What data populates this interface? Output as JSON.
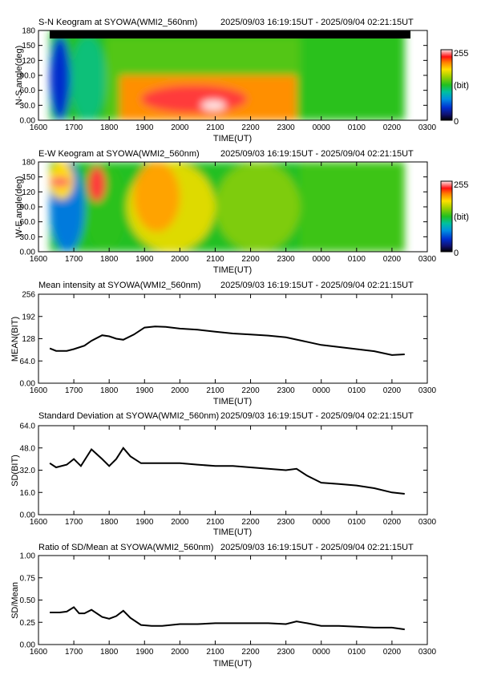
{
  "panels": [
    {
      "id": "sn",
      "title": "S-N Keogram at SYOWA(WMI2_560nm)",
      "time_range": "2025/09/03 16:19:15UT - 2025/09/04 02:21:15UT",
      "ylabel": "N-S angle(deg)",
      "xlabel": "TIME(UT)",
      "yticks": [
        "0.00",
        "30.0",
        "60.0",
        "90.0",
        "120",
        "150",
        "180"
      ],
      "xticks": [
        "1600",
        "1700",
        "1800",
        "1900",
        "2000",
        "2100",
        "2200",
        "2300",
        "0000",
        "0100",
        "0200",
        "0300"
      ],
      "colorbar": {
        "max": "255",
        "unit": "(bit)",
        "min": "0"
      }
    },
    {
      "id": "ew",
      "title": "E-W Keogram at SYOWA(WMI2_560nm)",
      "time_range": "2025/09/03 16:19:15UT - 2025/09/04 02:21:15UT",
      "ylabel": "W-E angle(deg)",
      "xlabel": "TIME(UT)",
      "yticks": [
        "0.00",
        "30.0",
        "60.0",
        "90.0",
        "120",
        "150",
        "180"
      ],
      "xticks": [
        "1600",
        "1700",
        "1800",
        "1900",
        "2000",
        "2100",
        "2200",
        "2300",
        "0000",
        "0100",
        "0200",
        "0300"
      ],
      "colorbar": {
        "max": "255",
        "unit": "(bit)",
        "min": "0"
      }
    },
    {
      "id": "mean",
      "title": "Mean intensity at SYOWA(WMI2_560nm)",
      "time_range": "2025/09/03 16:19:15UT - 2025/09/04 02:21:15UT",
      "ylabel": "MEAN(BIT)",
      "xlabel": "TIME(UT)",
      "yticks": [
        "0.00",
        "64.0",
        "128",
        "192",
        "256"
      ],
      "xticks": [
        "1600",
        "1700",
        "1800",
        "1900",
        "2000",
        "2100",
        "2200",
        "2300",
        "0000",
        "0100",
        "0200",
        "0300"
      ]
    },
    {
      "id": "sd",
      "title": "Standard Deviation at SYOWA(WMI2_560nm)",
      "time_range": "2025/09/03 16:19:15UT - 2025/09/04 02:21:15UT",
      "ylabel": "SD(BIT)",
      "xlabel": "TIME(UT)",
      "yticks": [
        "0.00",
        "16.0",
        "32.0",
        "48.0",
        "64.0"
      ],
      "xticks": [
        "1600",
        "1700",
        "1800",
        "1900",
        "2000",
        "2100",
        "2200",
        "2300",
        "0000",
        "0100",
        "0200",
        "0300"
      ]
    },
    {
      "id": "ratio",
      "title": "Ratio of SD/Mean at SYOWA(WMI2_560nm)",
      "time_range": "2025/09/03 16:19:15UT - 2025/09/04 02:21:15UT",
      "ylabel": "SD/Mean",
      "xlabel": "TIME(UT)",
      "yticks": [
        "0.00",
        "0.25",
        "0.50",
        "0.75",
        "1.00"
      ],
      "xticks": [
        "1600",
        "1700",
        "1800",
        "1900",
        "2000",
        "2100",
        "2200",
        "2300",
        "0000",
        "0100",
        "0200",
        "0300"
      ]
    }
  ],
  "chart_data": [
    {
      "type": "heatmap",
      "title": "S-N Keogram at SYOWA(WMI2_560nm)",
      "xlabel": "TIME(UT)",
      "ylabel": "N-S angle(deg)",
      "xlim": [
        16.0,
        27.0
      ],
      "ylim": [
        0,
        180
      ],
      "zlim": [
        0,
        255
      ],
      "data_x_range": [
        16.32,
        26.36
      ],
      "no_data_above_deg": 168,
      "regions": [
        {
          "x": [
            16.32,
            16.9
          ],
          "y": [
            0,
            168
          ],
          "value": 45
        },
        {
          "x": [
            16.9,
            17.9
          ],
          "y": [
            0,
            168
          ],
          "value": 110
        },
        {
          "x": [
            17.9,
            23.4
          ],
          "y": [
            0,
            168
          ],
          "value": 140
        },
        {
          "x": [
            18.3,
            23.3
          ],
          "y": [
            0,
            90
          ],
          "value": 205
        },
        {
          "x": [
            18.9,
            21.9
          ],
          "y": [
            15,
            70
          ],
          "value": 235
        },
        {
          "x": [
            20.6,
            21.3
          ],
          "y": [
            20,
            40
          ],
          "value": 255
        },
        {
          "x": [
            23.4,
            26.36
          ],
          "y": [
            0,
            168
          ],
          "value": 130
        }
      ]
    },
    {
      "type": "heatmap",
      "title": "E-W Keogram at SYOWA(WMI2_560nm)",
      "xlabel": "TIME(UT)",
      "ylabel": "W-E angle(deg)",
      "xlim": [
        16.0,
        27.0
      ],
      "ylim": [
        0,
        180
      ],
      "zlim": [
        0,
        255
      ],
      "data_x_range": [
        16.32,
        26.36
      ],
      "regions": [
        {
          "x": [
            16.32,
            17.3
          ],
          "y": [
            0,
            180
          ],
          "value": 70
        },
        {
          "x": [
            16.32,
            17.0
          ],
          "y": [
            105,
            180
          ],
          "value": 185
        },
        {
          "x": [
            16.32,
            16.9
          ],
          "y": [
            130,
            150
          ],
          "value": 240
        },
        {
          "x": [
            17.3,
            18.5
          ],
          "y": [
            0,
            180
          ],
          "value": 130
        },
        {
          "x": [
            17.4,
            17.9
          ],
          "y": [
            100,
            170
          ],
          "value": 235
        },
        {
          "x": [
            18.5,
            21.0
          ],
          "y": [
            0,
            180
          ],
          "value": 175
        },
        {
          "x": [
            18.7,
            20.0
          ],
          "y": [
            40,
            180
          ],
          "value": 200
        },
        {
          "x": [
            21.0,
            23.4
          ],
          "y": [
            0,
            180
          ],
          "value": 150
        },
        {
          "x": [
            23.4,
            26.36
          ],
          "y": [
            0,
            180
          ],
          "value": 135
        }
      ]
    },
    {
      "type": "line",
      "title": "Mean intensity at SYOWA(WMI2_560nm)",
      "xlabel": "TIME(UT)",
      "ylabel": "MEAN(BIT)",
      "xlim": [
        16.0,
        27.0
      ],
      "ylim": [
        0,
        256
      ],
      "series": [
        {
          "x": [
            16.32,
            16.5,
            16.8,
            17.0,
            17.3,
            17.5,
            17.8,
            18.0,
            18.2,
            18.4,
            18.7,
            19.0,
            19.3,
            19.6,
            20.0,
            20.5,
            21.0,
            21.5,
            22.0,
            22.5,
            23.0,
            23.5,
            24.0,
            24.5,
            25.0,
            25.5,
            26.0,
            26.36
          ],
          "y": [
            100,
            93,
            93,
            98,
            108,
            122,
            138,
            135,
            128,
            125,
            140,
            160,
            163,
            162,
            157,
            154,
            148,
            143,
            140,
            137,
            132,
            121,
            110,
            104,
            98,
            92,
            81,
            83
          ]
        }
      ]
    },
    {
      "type": "line",
      "title": "Standard Deviation at SYOWA(WMI2_560nm)",
      "xlabel": "TIME(UT)",
      "ylabel": "SD(BIT)",
      "xlim": [
        16.0,
        27.0
      ],
      "ylim": [
        0,
        64
      ],
      "series": [
        {
          "x": [
            16.32,
            16.5,
            16.8,
            17.0,
            17.2,
            17.5,
            17.8,
            18.0,
            18.2,
            18.4,
            18.6,
            18.9,
            19.2,
            19.5,
            20.0,
            20.5,
            21.0,
            21.5,
            22.0,
            22.5,
            23.0,
            23.3,
            23.6,
            24.0,
            24.5,
            25.0,
            25.5,
            26.0,
            26.36
          ],
          "y": [
            37,
            34,
            36,
            40,
            35,
            47,
            40,
            35,
            40,
            48,
            42,
            37,
            37,
            37,
            37,
            36,
            35,
            35,
            34,
            33,
            32,
            33,
            28,
            23,
            22,
            21,
            19,
            16,
            15
          ]
        }
      ]
    },
    {
      "type": "line",
      "title": "Ratio of SD/Mean at SYOWA(WMI2_560nm)",
      "xlabel": "TIME(UT)",
      "ylabel": "SD/Mean",
      "xlim": [
        16.0,
        27.0
      ],
      "ylim": [
        0,
        1.0
      ],
      "series": [
        {
          "x": [
            16.32,
            16.6,
            16.8,
            17.0,
            17.15,
            17.3,
            17.5,
            17.8,
            18.0,
            18.2,
            18.4,
            18.6,
            18.9,
            19.2,
            19.5,
            20.0,
            20.5,
            21.0,
            21.5,
            22.0,
            22.5,
            23.0,
            23.3,
            23.6,
            24.0,
            24.5,
            25.0,
            25.5,
            26.0,
            26.36
          ],
          "y": [
            0.36,
            0.36,
            0.37,
            0.42,
            0.35,
            0.35,
            0.39,
            0.31,
            0.29,
            0.32,
            0.38,
            0.3,
            0.22,
            0.21,
            0.21,
            0.23,
            0.23,
            0.24,
            0.24,
            0.24,
            0.24,
            0.23,
            0.26,
            0.24,
            0.21,
            0.21,
            0.2,
            0.19,
            0.19,
            0.17
          ]
        }
      ]
    }
  ]
}
